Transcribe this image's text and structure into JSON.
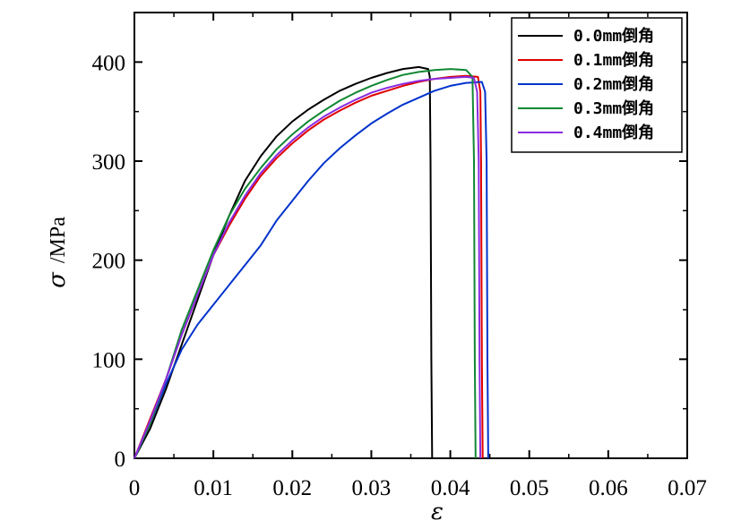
{
  "chart_data": {
    "type": "line",
    "title": "",
    "xlabel": "ε",
    "ylabel": {
      "symbol": "σ",
      "unit": "/MPa"
    },
    "xlim": [
      0,
      0.07
    ],
    "ylim": [
      0,
      450
    ],
    "xticks": [
      "0",
      "0.01",
      "0.02",
      "0.03",
      "0.04",
      "0.05",
      "0.06",
      "0.07"
    ],
    "yticks": [
      "0",
      "100",
      "200",
      "300",
      "400"
    ],
    "xtick_values": [
      0,
      0.01,
      0.02,
      0.03,
      0.04,
      0.05,
      0.06,
      0.07
    ],
    "ytick_values": [
      0,
      100,
      200,
      300,
      400
    ],
    "grid": false,
    "legend_position": "top-right",
    "series": [
      {
        "name": "0.0mm倒角",
        "color": "#000000",
        "points": [
          [
            0,
            0
          ],
          [
            0.002,
            30
          ],
          [
            0.004,
            70
          ],
          [
            0.006,
            115
          ],
          [
            0.008,
            160
          ],
          [
            0.01,
            205
          ],
          [
            0.012,
            245
          ],
          [
            0.014,
            280
          ],
          [
            0.016,
            305
          ],
          [
            0.018,
            325
          ],
          [
            0.02,
            340
          ],
          [
            0.022,
            352
          ],
          [
            0.024,
            362
          ],
          [
            0.026,
            371
          ],
          [
            0.028,
            378
          ],
          [
            0.03,
            384
          ],
          [
            0.032,
            389
          ],
          [
            0.034,
            393
          ],
          [
            0.036,
            395
          ],
          [
            0.0372,
            393
          ],
          [
            0.0374,
            385
          ],
          [
            0.0375,
            300
          ],
          [
            0.0376,
            100
          ],
          [
            0.0377,
            0
          ]
        ]
      },
      {
        "name": "0.1mm倒角",
        "color": "#e00000",
        "points": [
          [
            0,
            0
          ],
          [
            0.002,
            40
          ],
          [
            0.004,
            80
          ],
          [
            0.006,
            125
          ],
          [
            0.008,
            165
          ],
          [
            0.01,
            205
          ],
          [
            0.012,
            235
          ],
          [
            0.014,
            262
          ],
          [
            0.016,
            285
          ],
          [
            0.018,
            303
          ],
          [
            0.02,
            318
          ],
          [
            0.022,
            331
          ],
          [
            0.024,
            342
          ],
          [
            0.026,
            351
          ],
          [
            0.028,
            359
          ],
          [
            0.03,
            366
          ],
          [
            0.032,
            371
          ],
          [
            0.034,
            376
          ],
          [
            0.036,
            380
          ],
          [
            0.038,
            383
          ],
          [
            0.04,
            385
          ],
          [
            0.042,
            386
          ],
          [
            0.0435,
            385
          ],
          [
            0.0438,
            370
          ],
          [
            0.0439,
            300
          ],
          [
            0.044,
            100
          ],
          [
            0.0441,
            0
          ]
        ]
      },
      {
        "name": "0.2mm倒角",
        "color": "#0033cc",
        "points": [
          [
            0,
            0
          ],
          [
            0.002,
            35
          ],
          [
            0.004,
            75
          ],
          [
            0.006,
            110
          ],
          [
            0.008,
            135
          ],
          [
            0.01,
            155
          ],
          [
            0.012,
            175
          ],
          [
            0.014,
            195
          ],
          [
            0.016,
            215
          ],
          [
            0.018,
            240
          ],
          [
            0.02,
            260
          ],
          [
            0.022,
            280
          ],
          [
            0.024,
            298
          ],
          [
            0.026,
            313
          ],
          [
            0.028,
            326
          ],
          [
            0.03,
            338
          ],
          [
            0.032,
            348
          ],
          [
            0.034,
            357
          ],
          [
            0.036,
            364
          ],
          [
            0.038,
            371
          ],
          [
            0.04,
            376
          ],
          [
            0.042,
            379
          ],
          [
            0.044,
            380
          ],
          [
            0.0444,
            370
          ],
          [
            0.0446,
            300
          ],
          [
            0.0447,
            100
          ],
          [
            0.0448,
            0
          ]
        ]
      },
      {
        "name": "0.3mm倒角",
        "color": "#118833",
        "points": [
          [
            0,
            0
          ],
          [
            0.002,
            35
          ],
          [
            0.004,
            80
          ],
          [
            0.006,
            130
          ],
          [
            0.008,
            170
          ],
          [
            0.01,
            210
          ],
          [
            0.012,
            245
          ],
          [
            0.014,
            272
          ],
          [
            0.016,
            293
          ],
          [
            0.018,
            312
          ],
          [
            0.02,
            327
          ],
          [
            0.022,
            340
          ],
          [
            0.024,
            351
          ],
          [
            0.026,
            361
          ],
          [
            0.028,
            369
          ],
          [
            0.03,
            376
          ],
          [
            0.032,
            382
          ],
          [
            0.034,
            387
          ],
          [
            0.036,
            390
          ],
          [
            0.038,
            392
          ],
          [
            0.04,
            393
          ],
          [
            0.042,
            392
          ],
          [
            0.0428,
            385
          ],
          [
            0.043,
            300
          ],
          [
            0.0431,
            100
          ],
          [
            0.0432,
            0
          ]
        ]
      },
      {
        "name": "0.4mm倒角",
        "color": "#8a2be2",
        "points": [
          [
            0,
            0
          ],
          [
            0.002,
            38
          ],
          [
            0.004,
            80
          ],
          [
            0.006,
            125
          ],
          [
            0.008,
            165
          ],
          [
            0.01,
            205
          ],
          [
            0.012,
            238
          ],
          [
            0.014,
            265
          ],
          [
            0.016,
            288
          ],
          [
            0.018,
            306
          ],
          [
            0.02,
            321
          ],
          [
            0.022,
            334
          ],
          [
            0.024,
            345
          ],
          [
            0.026,
            354
          ],
          [
            0.028,
            362
          ],
          [
            0.03,
            369
          ],
          [
            0.032,
            374
          ],
          [
            0.034,
            378
          ],
          [
            0.036,
            381
          ],
          [
            0.038,
            383
          ],
          [
            0.04,
            384
          ],
          [
            0.042,
            385
          ],
          [
            0.043,
            384
          ],
          [
            0.0434,
            370
          ],
          [
            0.0436,
            300
          ],
          [
            0.0437,
            100
          ],
          [
            0.0438,
            0
          ]
        ]
      }
    ]
  }
}
